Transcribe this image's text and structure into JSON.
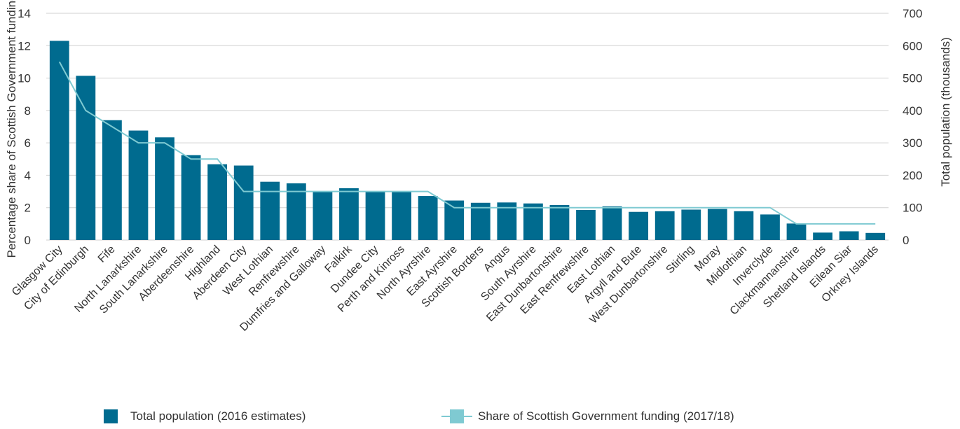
{
  "colors": {
    "bar": "#006b8f",
    "line": "#7fcad2",
    "grid": "#d0d0d0",
    "text": "#333333"
  },
  "legend": {
    "bar_label": "Total population (2016 estimates)",
    "line_label": "Share of Scottish Government funding (2017/18)"
  },
  "chart_data": {
    "type": "bar",
    "title": "",
    "ylabel_left": "Percentage share of Scottish Government funding",
    "ylabel_right": "Total population (thousands)",
    "ylim_left": [
      0,
      14
    ],
    "ylim_right": [
      0,
      700
    ],
    "yticks_left": [
      "0",
      "2",
      "4",
      "6",
      "8",
      "10",
      "12",
      "14"
    ],
    "yticks_right": [
      "0",
      "100",
      "200",
      "300",
      "400",
      "500",
      "600",
      "700"
    ],
    "grid": true,
    "legend_position": "bottom",
    "categories": [
      "Glasgow City",
      "City of Edinburgh",
      "Fife",
      "North Lanarkshire",
      "South Lanarkshire",
      "Aberdeenshire",
      "Highland",
      "Aberdeen City",
      "West Lothian",
      "Renfrewshire",
      "Dumfries and Galloway",
      "Falkirk",
      "Dundee City",
      "Perth and Kinross",
      "North Ayrshire",
      "East Ayrshire",
      "Scottish Borders",
      "Angus",
      "South Ayrshire",
      "East Dunbartonshire",
      "East Renfrewshire",
      "East Lothian",
      "Argyll and Bute",
      "West Dunbartonshire",
      "Stirling",
      "Moray",
      "Midlothian",
      "Inverclyde",
      "Clackmannanshire",
      "Shetland Islands",
      "Eilean Siar",
      "Orkney Islands"
    ],
    "series": [
      {
        "name": "Total population (2016 estimates)",
        "type": "bar",
        "axis": "right",
        "values": [
          615,
          507,
          370,
          338,
          317,
          262,
          234,
          230,
          180,
          175,
          149,
          160,
          149,
          150,
          136,
          122,
          115,
          116,
          113,
          108,
          93,
          104,
          87,
          89,
          94,
          96,
          89,
          79,
          51,
          23,
          27,
          22
        ]
      },
      {
        "name": "Share of Scottish Government funding (2017/18)",
        "type": "line",
        "axis": "left",
        "values": [
          11.0,
          8.0,
          7.0,
          6.0,
          6.0,
          5.0,
          5.0,
          3.0,
          3.0,
          3.0,
          3.0,
          3.0,
          3.0,
          3.0,
          3.0,
          2.0,
          2.0,
          2.0,
          2.0,
          2.0,
          2.0,
          2.0,
          2.0,
          2.0,
          2.0,
          2.0,
          2.0,
          2.0,
          1.0,
          1.0,
          1.0,
          1.0
        ]
      }
    ]
  }
}
